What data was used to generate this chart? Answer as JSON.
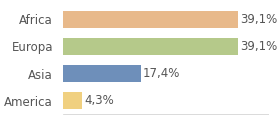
{
  "categories": [
    "America",
    "Asia",
    "Europa",
    "Africa"
  ],
  "values": [
    4.3,
    17.4,
    39.1,
    39.1
  ],
  "labels": [
    "4,3%",
    "17,4%",
    "39,1%",
    "39,1%"
  ],
  "bar_colors": [
    "#f0d080",
    "#6e8fba",
    "#b5c98a",
    "#e8b98a"
  ],
  "background_color": "#ffffff",
  "xlim": [
    0,
    46
  ],
  "bar_height": 0.62,
  "label_fontsize": 8.5,
  "ytick_fontsize": 8.5
}
